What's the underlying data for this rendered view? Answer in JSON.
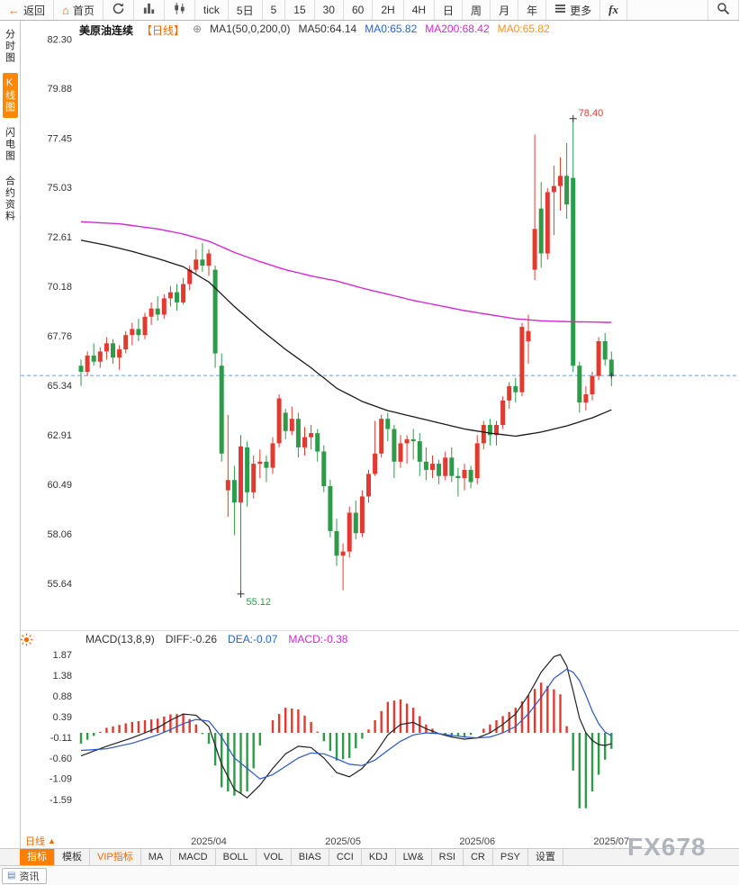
{
  "toolbar": {
    "back": "返回",
    "home": "首页",
    "intervals": [
      "tick",
      "5日",
      "5",
      "15",
      "30",
      "60",
      "2H",
      "4H",
      "日",
      "周",
      "月",
      "年"
    ],
    "more": "更多",
    "fx": "fx"
  },
  "sidebar": {
    "items": [
      {
        "label": "分时图",
        "active": false
      },
      {
        "label": "K线图",
        "active": true
      },
      {
        "label": "闪电图",
        "active": false
      },
      {
        "label": "合约资料",
        "active": false
      }
    ]
  },
  "chart_header": {
    "symbol": "美原油连续",
    "period_tag": "【日线】",
    "ma_formula": "MA1(50,0,200,0)",
    "ma50_label": "MA50:64.14",
    "ma0_blue": "MA0:65.82",
    "ma200_label": "MA200:68.42",
    "ma0_orange": "MA0:65.82"
  },
  "macd_header": {
    "title": "MACD(13,8,9)",
    "diff": "DIFF:-0.26",
    "dea": "DEA:-0.07",
    "macd": "MACD:-0.38"
  },
  "bottom": {
    "period_label": "日线",
    "tabs": [
      {
        "label": "指标",
        "style": "selected"
      },
      {
        "label": "模板",
        "style": ""
      },
      {
        "label": "VIP指标",
        "style": "vip"
      },
      {
        "label": "MA",
        "style": ""
      },
      {
        "label": "MACD",
        "style": ""
      },
      {
        "label": "BOLL",
        "style": ""
      },
      {
        "label": "VOL",
        "style": ""
      },
      {
        "label": "BIAS",
        "style": ""
      },
      {
        "label": "CCI",
        "style": ""
      },
      {
        "label": "KDJ",
        "style": ""
      },
      {
        "label": "LW&",
        "style": ""
      },
      {
        "label": "RSI",
        "style": ""
      },
      {
        "label": "CR",
        "style": ""
      },
      {
        "label": "PSY",
        "style": ""
      },
      {
        "label": "设置",
        "style": ""
      }
    ],
    "news_tab": "资讯",
    "watermark": "FX678"
  },
  "chart_data": {
    "type": "candlestick",
    "indicator": "MACD(13,8,9)",
    "title": "美原油连续 日线",
    "colors": {
      "up": "#e23a2f",
      "down": "#2e9b4a",
      "ma50": "#1a1a1a",
      "ma200": "#d428d4",
      "diff": "#222222",
      "dea": "#2b55cc",
      "price_line": "#4a90d9"
    },
    "y_axis": [
      82.3,
      79.88,
      77.45,
      75.03,
      72.61,
      70.18,
      67.76,
      65.34,
      62.91,
      60.49,
      58.06,
      55.64
    ],
    "macd_axis": [
      1.87,
      1.38,
      0.88,
      0.39,
      -0.11,
      -0.6,
      -1.09,
      -1.59
    ],
    "x_labels": [
      {
        "i": 20,
        "t": "2025/04"
      },
      {
        "i": 41,
        "t": "2025/05"
      },
      {
        "i": 62,
        "t": "2025/06"
      },
      {
        "i": 83,
        "t": "2025/07"
      }
    ],
    "current_price": 65.82,
    "high_marker": {
      "i": 77,
      "v": 78.4,
      "t": "78.40"
    },
    "low_marker": {
      "i": 25,
      "v": 55.12,
      "t": "55.12"
    },
    "candles": [
      [
        66.3,
        66.6,
        65.3,
        66.0
      ],
      [
        66.0,
        67.0,
        65.8,
        66.8
      ],
      [
        66.8,
        67.4,
        66.3,
        66.5
      ],
      [
        66.5,
        67.2,
        66.2,
        67.0
      ],
      [
        67.0,
        67.7,
        66.6,
        67.4
      ],
      [
        67.4,
        67.6,
        66.4,
        66.7
      ],
      [
        66.7,
        67.3,
        66.1,
        67.1
      ],
      [
        67.1,
        68.0,
        66.9,
        67.8
      ],
      [
        67.8,
        68.4,
        67.3,
        68.1
      ],
      [
        68.1,
        68.6,
        67.5,
        67.8
      ],
      [
        67.8,
        68.9,
        67.6,
        68.7
      ],
      [
        68.7,
        69.4,
        68.3,
        69.1
      ],
      [
        69.1,
        69.7,
        68.5,
        68.8
      ],
      [
        68.8,
        69.8,
        68.6,
        69.6
      ],
      [
        69.6,
        70.2,
        69.2,
        69.9
      ],
      [
        69.9,
        70.3,
        69.0,
        69.4
      ],
      [
        69.4,
        70.6,
        69.3,
        70.3
      ],
      [
        70.3,
        71.2,
        70.0,
        71.0
      ],
      [
        71.0,
        72.0,
        70.8,
        71.5
      ],
      [
        71.5,
        72.3,
        70.9,
        71.2
      ],
      [
        71.2,
        72.0,
        70.7,
        71.8
      ],
      [
        71.0,
        71.2,
        66.2,
        66.9
      ],
      [
        66.3,
        66.9,
        61.6,
        62.0
      ],
      [
        60.2,
        63.9,
        58.9,
        60.7
      ],
      [
        60.7,
        61.4,
        58.0,
        59.6
      ],
      [
        59.6,
        62.9,
        55.12,
        62.35
      ],
      [
        62.3,
        62.6,
        59.4,
        60.1
      ],
      [
        60.1,
        61.9,
        59.8,
        61.5
      ],
      [
        61.5,
        62.2,
        60.8,
        61.6
      ],
      [
        61.6,
        61.9,
        60.6,
        61.3
      ],
      [
        61.3,
        62.8,
        61.0,
        62.5
      ],
      [
        62.5,
        64.9,
        62.3,
        64.7
      ],
      [
        64.0,
        64.2,
        62.7,
        63.1
      ],
      [
        63.1,
        64.3,
        62.9,
        63.7
      ],
      [
        63.7,
        64.0,
        61.8,
        62.3
      ],
      [
        62.3,
        63.3,
        61.9,
        62.8
      ],
      [
        62.8,
        63.4,
        62.2,
        63.0
      ],
      [
        63.0,
        63.2,
        61.6,
        62.1
      ],
      [
        62.1,
        62.4,
        60.1,
        60.4
      ],
      [
        60.4,
        60.7,
        57.9,
        58.2
      ],
      [
        58.2,
        58.8,
        56.5,
        57.0
      ],
      [
        57.0,
        57.6,
        55.3,
        57.2
      ],
      [
        57.2,
        59.4,
        56.9,
        59.1
      ],
      [
        59.1,
        59.7,
        57.8,
        58.1
      ],
      [
        58.1,
        60.2,
        57.9,
        59.9
      ],
      [
        59.9,
        61.2,
        59.6,
        61.0
      ],
      [
        61.0,
        63.6,
        60.9,
        62.0
      ],
      [
        62.0,
        63.9,
        61.8,
        63.7
      ],
      [
        63.7,
        64.0,
        62.6,
        63.2
      ],
      [
        63.2,
        63.4,
        60.8,
        61.6
      ],
      [
        61.6,
        62.9,
        61.3,
        62.5
      ],
      [
        62.5,
        62.9,
        61.5,
        62.7
      ],
      [
        62.7,
        63.2,
        61.7,
        62.6
      ],
      [
        62.6,
        63.0,
        60.9,
        61.6
      ],
      [
        61.6,
        62.3,
        60.7,
        61.2
      ],
      [
        61.2,
        61.9,
        60.8,
        61.5
      ],
      [
        61.5,
        61.7,
        60.5,
        60.9
      ],
      [
        60.9,
        62.1,
        60.7,
        61.8
      ],
      [
        61.8,
        62.3,
        60.6,
        60.9
      ],
      [
        60.9,
        61.3,
        59.9,
        60.8
      ],
      [
        60.8,
        61.5,
        60.2,
        61.2
      ],
      [
        61.2,
        61.4,
        60.3,
        60.6
      ],
      [
        60.8,
        62.9,
        60.5,
        62.5
      ],
      [
        62.5,
        63.6,
        62.2,
        63.4
      ],
      [
        63.4,
        63.7,
        62.4,
        62.9
      ],
      [
        62.9,
        63.6,
        62.4,
        63.4
      ],
      [
        63.4,
        64.8,
        63.2,
        64.6
      ],
      [
        64.6,
        65.5,
        64.2,
        65.3
      ],
      [
        65.3,
        65.7,
        64.5,
        65.0
      ],
      [
        65.0,
        68.4,
        64.8,
        68.2
      ],
      [
        67.5,
        68.8,
        66.4,
        68.0
      ],
      [
        71.0,
        77.62,
        70.5,
        73.0
      ],
      [
        74.0,
        75.3,
        71.1,
        71.8
      ],
      [
        71.8,
        75.0,
        71.5,
        74.8
      ],
      [
        74.8,
        76.1,
        72.7,
        75.1
      ],
      [
        75.1,
        76.5,
        73.9,
        75.6
      ],
      [
        75.6,
        77.2,
        73.5,
        74.2
      ],
      [
        75.5,
        78.4,
        66.0,
        66.3
      ],
      [
        66.3,
        66.5,
        64.0,
        64.5
      ],
      [
        64.5,
        65.3,
        64.1,
        64.9
      ],
      [
        64.9,
        66.0,
        64.6,
        65.8
      ],
      [
        65.8,
        67.7,
        65.6,
        67.5
      ],
      [
        67.5,
        67.9,
        66.3,
        66.6
      ],
      [
        66.6,
        67.0,
        65.3,
        65.82
      ]
    ],
    "ma50_points": [
      [
        0,
        72.45
      ],
      [
        4,
        72.2
      ],
      [
        8,
        71.9
      ],
      [
        12,
        71.55
      ],
      [
        16,
        71.15
      ],
      [
        20,
        70.4
      ],
      [
        24,
        69.2
      ],
      [
        28,
        68.1
      ],
      [
        32,
        67.1
      ],
      [
        36,
        66.2
      ],
      [
        40,
        65.2
      ],
      [
        44,
        64.55
      ],
      [
        48,
        64.1
      ],
      [
        52,
        63.8
      ],
      [
        56,
        63.5
      ],
      [
        60,
        63.2
      ],
      [
        64,
        63.0
      ],
      [
        68,
        62.85
      ],
      [
        72,
        63.05
      ],
      [
        76,
        63.35
      ],
      [
        80,
        63.75
      ],
      [
        83,
        64.14
      ]
    ],
    "ma200_points": [
      [
        0,
        73.35
      ],
      [
        6,
        73.25
      ],
      [
        12,
        73.0
      ],
      [
        16,
        72.75
      ],
      [
        20,
        72.4
      ],
      [
        24,
        71.85
      ],
      [
        28,
        71.4
      ],
      [
        32,
        71.0
      ],
      [
        36,
        70.7
      ],
      [
        40,
        70.45
      ],
      [
        44,
        70.1
      ],
      [
        48,
        69.8
      ],
      [
        52,
        69.5
      ],
      [
        56,
        69.25
      ],
      [
        60,
        69.0
      ],
      [
        64,
        68.8
      ],
      [
        68,
        68.6
      ],
      [
        72,
        68.5
      ],
      [
        76,
        68.46
      ],
      [
        80,
        68.44
      ],
      [
        83,
        68.42
      ]
    ],
    "diff_points": [
      [
        0,
        -0.55
      ],
      [
        4,
        -0.32
      ],
      [
        8,
        -0.12
      ],
      [
        12,
        0.12
      ],
      [
        14,
        0.3
      ],
      [
        16,
        0.45
      ],
      [
        18,
        0.42
      ],
      [
        20,
        0.15
      ],
      [
        22,
        -0.75
      ],
      [
        24,
        -1.35
      ],
      [
        26,
        -1.55
      ],
      [
        28,
        -1.25
      ],
      [
        30,
        -0.85
      ],
      [
        32,
        -0.5
      ],
      [
        34,
        -0.32
      ],
      [
        36,
        -0.35
      ],
      [
        38,
        -0.6
      ],
      [
        40,
        -0.95
      ],
      [
        42,
        -1.05
      ],
      [
        44,
        -0.85
      ],
      [
        46,
        -0.5
      ],
      [
        48,
        -0.05
      ],
      [
        50,
        0.2
      ],
      [
        52,
        0.25
      ],
      [
        54,
        0.1
      ],
      [
        56,
        -0.02
      ],
      [
        58,
        -0.1
      ],
      [
        60,
        -0.15
      ],
      [
        62,
        -0.12
      ],
      [
        64,
        0.0
      ],
      [
        66,
        0.2
      ],
      [
        68,
        0.45
      ],
      [
        70,
        0.9
      ],
      [
        72,
        1.45
      ],
      [
        74,
        1.82
      ],
      [
        75,
        1.87
      ],
      [
        76,
        1.6
      ],
      [
        77,
        1.0
      ],
      [
        78,
        0.35
      ],
      [
        79,
        0.0
      ],
      [
        80,
        -0.18
      ],
      [
        81,
        -0.28
      ],
      [
        82,
        -0.3
      ],
      [
        83,
        -0.26
      ]
    ],
    "dea_points": [
      [
        0,
        -0.42
      ],
      [
        4,
        -0.38
      ],
      [
        8,
        -0.25
      ],
      [
        12,
        -0.05
      ],
      [
        14,
        0.08
      ],
      [
        16,
        0.22
      ],
      [
        18,
        0.32
      ],
      [
        20,
        0.28
      ],
      [
        22,
        -0.1
      ],
      [
        24,
        -0.6
      ],
      [
        26,
        -0.85
      ],
      [
        28,
        -1.1
      ],
      [
        30,
        -1.0
      ],
      [
        32,
        -0.8
      ],
      [
        34,
        -0.6
      ],
      [
        36,
        -0.48
      ],
      [
        38,
        -0.5
      ],
      [
        40,
        -0.62
      ],
      [
        42,
        -0.75
      ],
      [
        44,
        -0.78
      ],
      [
        46,
        -0.65
      ],
      [
        48,
        -0.42
      ],
      [
        50,
        -0.2
      ],
      [
        52,
        -0.05
      ],
      [
        54,
        0.0
      ],
      [
        56,
        -0.02
      ],
      [
        58,
        -0.06
      ],
      [
        60,
        -0.1
      ],
      [
        62,
        -0.12
      ],
      [
        64,
        -0.1
      ],
      [
        66,
        0.0
      ],
      [
        68,
        0.15
      ],
      [
        70,
        0.45
      ],
      [
        72,
        0.85
      ],
      [
        74,
        1.3
      ],
      [
        76,
        1.52
      ],
      [
        77,
        1.45
      ],
      [
        78,
        1.25
      ],
      [
        79,
        0.9
      ],
      [
        80,
        0.52
      ],
      [
        81,
        0.22
      ],
      [
        82,
        0.02
      ],
      [
        83,
        -0.07
      ]
    ]
  }
}
